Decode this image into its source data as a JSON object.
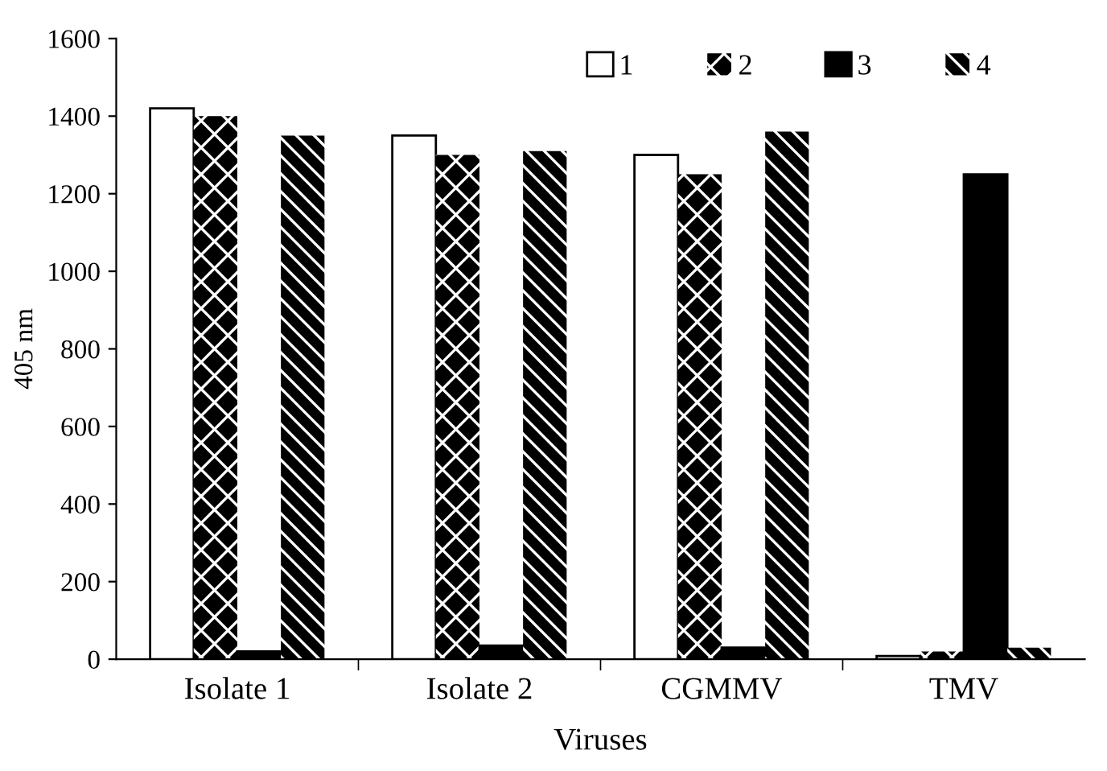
{
  "chart_data": {
    "type": "bar",
    "xlabel": "Viruses",
    "ylabel": "405 nm",
    "categories": [
      "Isolate 1",
      "Isolate 2",
      "CGMMV",
      "TMV"
    ],
    "series": [
      {
        "name": "1",
        "color": "#ffffff",
        "values": [
          1420,
          1350,
          1300,
          8
        ]
      },
      {
        "name": "2",
        "color": "#000000",
        "values": [
          1400,
          1300,
          1250,
          20
        ]
      },
      {
        "name": "3",
        "color": "#000000",
        "values": [
          20,
          35,
          30,
          1250
        ]
      },
      {
        "name": "4",
        "color": "#000000",
        "values": [
          1350,
          1310,
          1360,
          30
        ]
      }
    ],
    "ylim": [
      0,
      1600
    ],
    "yticks": [
      0,
      200,
      400,
      600,
      800,
      1000,
      1200,
      1400,
      1600
    ],
    "grid": false,
    "legend": "top right"
  }
}
